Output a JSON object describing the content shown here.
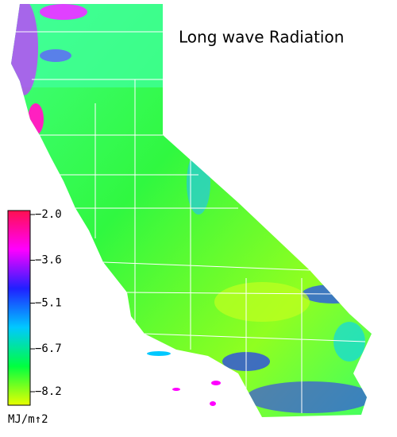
{
  "title": "Long wave Radiation",
  "colorbar": {
    "ticks": [
      {
        "value": -2.0,
        "label": "−2.0"
      },
      {
        "value": -3.6,
        "label": "−3.6"
      },
      {
        "value": -5.1,
        "label": "−5.1"
      },
      {
        "value": -6.7,
        "label": "−6.7"
      },
      {
        "value": -8.2,
        "label": "−8.2"
      }
    ],
    "colors": [
      "#ff1050",
      "#ff00ff",
      "#2020ff",
      "#00c8ff",
      "#00ff40",
      "#e8ff00"
    ],
    "unit": "MJ/m↑2"
  }
}
